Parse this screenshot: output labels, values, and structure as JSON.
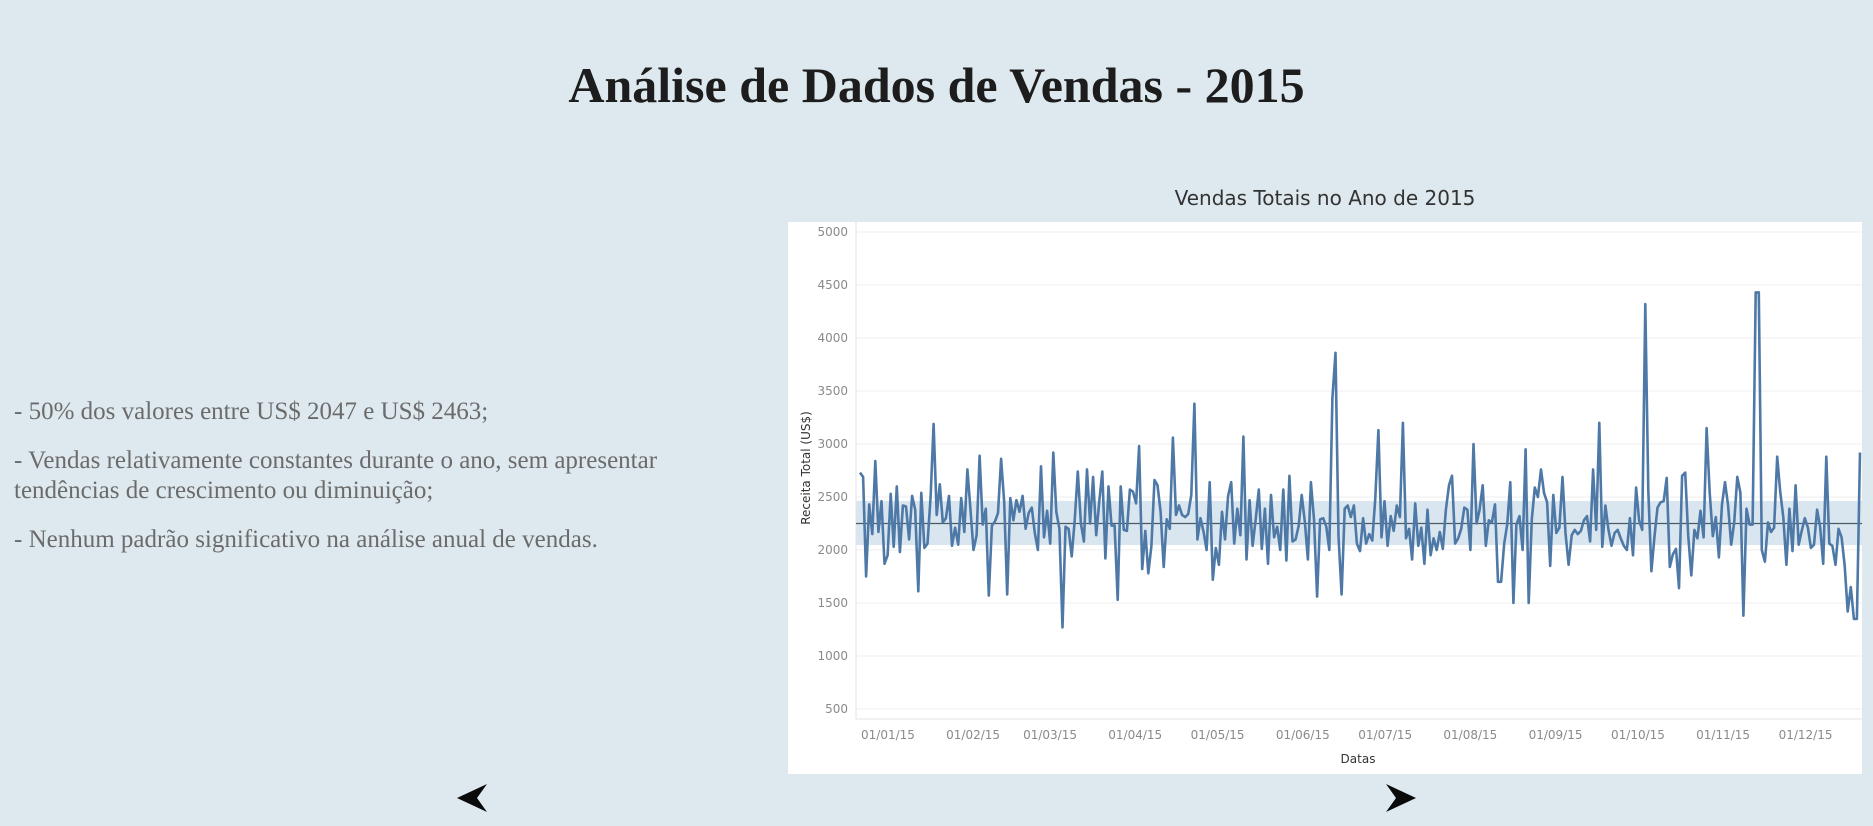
{
  "page": {
    "title": "Análise de Dados de Vendas - 2015",
    "bullets": [
      "- 50% dos valores entre US$ 2047 e US$ 2463;",
      "- Vendas relativamente constantes durante o ano, sem apresentar tendências de crescimento ou diminuição;",
      "- Nenhum padrão significativo na análise anual de vendas."
    ],
    "nav": {
      "prev_icon": "left-triangle-arrow",
      "next_icon": "right-triangle-arrow"
    }
  },
  "colors": {
    "background": "#dee9ef",
    "line": "#4e79a7",
    "band": "#d9e6ef",
    "reference": "#4a5a66"
  },
  "chart_data": {
    "type": "line",
    "title": "Vendas Totais no Ano de 2015",
    "xlabel": "Datas",
    "ylabel": "Receita Total (US$)",
    "ylim": [
      500,
      5000
    ],
    "yticks": [
      500,
      1000,
      1500,
      2000,
      2500,
      3000,
      3500,
      4000,
      4500,
      5000
    ],
    "xticks": [
      "01/01/15",
      "01/02/15",
      "01/03/15",
      "01/04/15",
      "01/05/15",
      "01/06/15",
      "01/07/15",
      "01/08/15",
      "01/09/15",
      "01/10/15",
      "01/11/15",
      "01/12/15"
    ],
    "reference_line": 2250,
    "band": [
      2047,
      2463
    ],
    "grid": true,
    "x_start": "2015-01-01",
    "values": [
      2730,
      2690,
      1750,
      2430,
      2150,
      2840,
      2170,
      2460,
      1870,
      1950,
      2530,
      2030,
      2600,
      1980,
      2420,
      2410,
      2100,
      2510,
      2380,
      1610,
      2540,
      2020,
      2060,
      2500,
      3190,
      2330,
      2620,
      2260,
      2300,
      2510,
      2040,
      2210,
      2050,
      2490,
      2170,
      2760,
      2390,
      2000,
      2140,
      2890,
      2240,
      2390,
      1570,
      2230,
      2270,
      2350,
      2860,
      2450,
      1580,
      2490,
      2280,
      2470,
      2360,
      2510,
      2200,
      2350,
      2400,
      2160,
      2000,
      2790,
      2120,
      2370,
      2060,
      2920,
      2360,
      2200,
      1270,
      2220,
      2200,
      1940,
      2280,
      2740,
      2250,
      2080,
      2760,
      2250,
      2690,
      2140,
      2460,
      2740,
      1920,
      2600,
      2230,
      2230,
      1530,
      2600,
      2190,
      2180,
      2570,
      2550,
      2440,
      2980,
      1820,
      2180,
      1780,
      2040,
      2660,
      2610,
      2360,
      1840,
      2290,
      2200,
      3060,
      2330,
      2420,
      2330,
      2310,
      2340,
      2520,
      3380,
      2100,
      2300,
      2170,
      2000,
      2640,
      1720,
      2020,
      1860,
      2360,
      2100,
      2510,
      2640,
      2060,
      2390,
      2140,
      3070,
      1910,
      2470,
      2040,
      2290,
      2570,
      2010,
      2390,
      1870,
      2520,
      2120,
      2220,
      2000,
      2570,
      1900,
      2700,
      2080,
      2100,
      2230,
      2520,
      2270,
      1910,
      2640,
      2290,
      1560,
      2290,
      2300,
      2220,
      2000,
      3430,
      3860,
      2130,
      1580,
      2390,
      2420,
      2310,
      2420,
      2060,
      1990,
      2300,
      2060,
      2150,
      2090,
      2490,
      3130,
      2120,
      2460,
      2040,
      2320,
      2180,
      2420,
      2310,
      3200,
      2110,
      2200,
      1910,
      2440,
      2040,
      2210,
      1870,
      2380,
      1950,
      2110,
      2000,
      2170,
      2010,
      2380,
      2610,
      2700,
      2060,
      2110,
      2200,
      2400,
      2380,
      2000,
      3000,
      2250,
      2380,
      2610,
      2040,
      2280,
      2260,
      2430,
      1700,
      1700,
      2060,
      2240,
      2640,
      1500,
      2240,
      2320,
      2000,
      2950,
      1500,
      2290,
      2590,
      2500,
      2760,
      2540,
      2450,
      1850,
      2520,
      2160,
      2210,
      2690,
      2160,
      1860,
      2140,
      2190,
      2150,
      2180,
      2280,
      2320,
      2080,
      2760,
      2190,
      3200,
      2030,
      2420,
      2190,
      2040,
      2160,
      2190,
      2110,
      2040,
      2000,
      2300,
      1950,
      2590,
      2280,
      2190,
      4320,
      2560,
      1800,
      2130,
      2400,
      2450,
      2460,
      2680,
      1840,
      1960,
      2010,
      1640,
      2700,
      2730,
      2140,
      1760,
      2190,
      2110,
      2370,
      2120,
      3150,
      2540,
      2130,
      2310,
      1930,
      2430,
      2640,
      2420,
      2050,
      2260,
      2690,
      2540,
      1380,
      2390,
      2240,
      2240,
      4430,
      4430,
      2000,
      1890,
      2260,
      2170,
      2210,
      2880,
      2550,
      2310,
      1860,
      2390,
      1990,
      2610,
      2050,
      2180,
      2300,
      2210,
      2020,
      2050,
      2380,
      2220,
      1870,
      2880,
      2060,
      2040,
      1860,
      2200,
      2120,
      1850,
      1420,
      1650,
      1350,
      1350,
      2920
    ]
  }
}
